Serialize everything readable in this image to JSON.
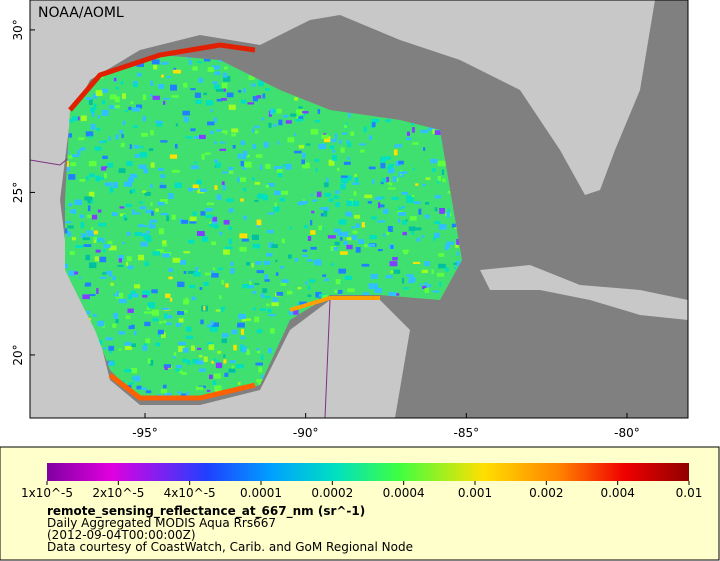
{
  "map": {
    "credit": "NOAA/AOML",
    "lon_range": [
      -98.58,
      -78.1
    ],
    "lat_range": [
      18.06,
      30.92
    ],
    "lon_ticks": [
      {
        "value": -95,
        "label": "-95°"
      },
      {
        "value": -90,
        "label": "-90°"
      },
      {
        "value": -85,
        "label": "-85°"
      },
      {
        "value": -80,
        "label": "-80°"
      }
    ],
    "lat_ticks": [
      {
        "value": 30,
        "label": "30°"
      },
      {
        "value": 25,
        "label": "25°"
      },
      {
        "value": 20,
        "label": "20°"
      }
    ]
  },
  "colorbar": {
    "ticks": [
      {
        "value": 1e-05,
        "label": "1x10^-5"
      },
      {
        "value": 2e-05,
        "label": "2x10^-5"
      },
      {
        "value": 4e-05,
        "label": "4x10^-5"
      },
      0.0001,
      0.0002,
      0.0004,
      0.001,
      0.002,
      0.004,
      0.01
    ],
    "title": "remote_sensing_reflectance_at_667_nm (sr^-1)",
    "lines": [
      "Daily Aggregated MODIS Aqua Rrs667",
      "(2012-09-04T00:00:00Z)",
      "Data courtesy of CoastWatch, Carib. and GoM Regional Node"
    ]
  }
}
